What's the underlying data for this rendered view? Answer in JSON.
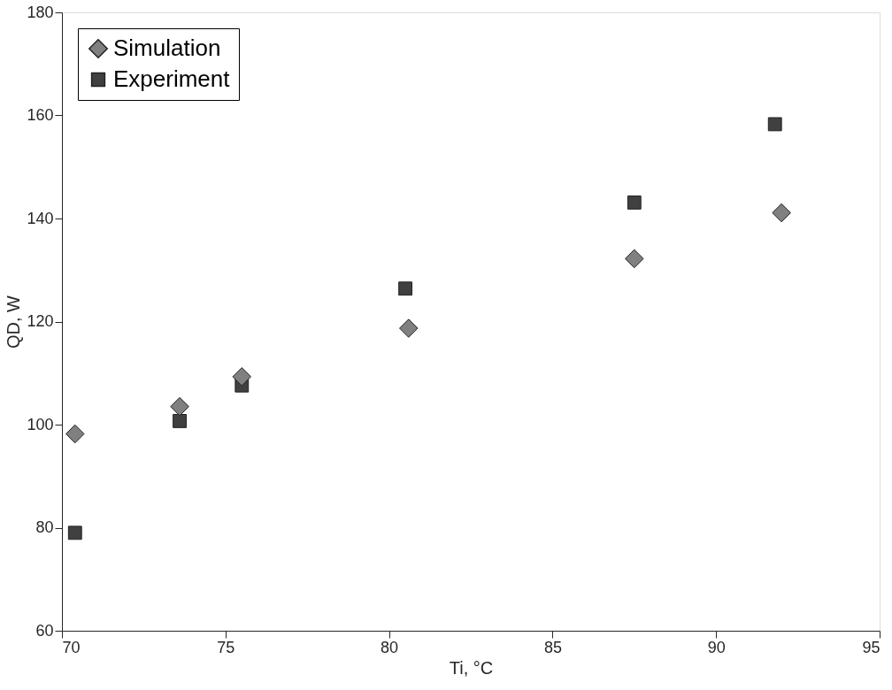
{
  "chart_data": {
    "type": "scatter",
    "xlabel": "Ti, °C",
    "ylabel": "QD, W",
    "series": [
      {
        "name": "Simulation",
        "color": "#808080",
        "marker": "diamond",
        "x": [
          70.4,
          73.6,
          75.5,
          80.6,
          87.5,
          92.0
        ],
        "values": [
          98.2,
          103.5,
          109.3,
          118.7,
          132.2,
          141.1
        ]
      },
      {
        "name": "Experiment",
        "color": "#404040",
        "marker": "square",
        "x": [
          70.4,
          73.6,
          75.5,
          80.5,
          87.5,
          91.8
        ],
        "values": [
          79.0,
          100.7,
          107.6,
          126.4,
          143.1,
          158.3
        ]
      }
    ],
    "xlim": [
      70,
      95
    ],
    "xticks": [
      70,
      75,
      80,
      85,
      90,
      95
    ],
    "ylim": [
      60,
      180
    ],
    "yticks": [
      60,
      80,
      100,
      120,
      140,
      160,
      180
    ],
    "grid": false,
    "legend": "top left"
  }
}
